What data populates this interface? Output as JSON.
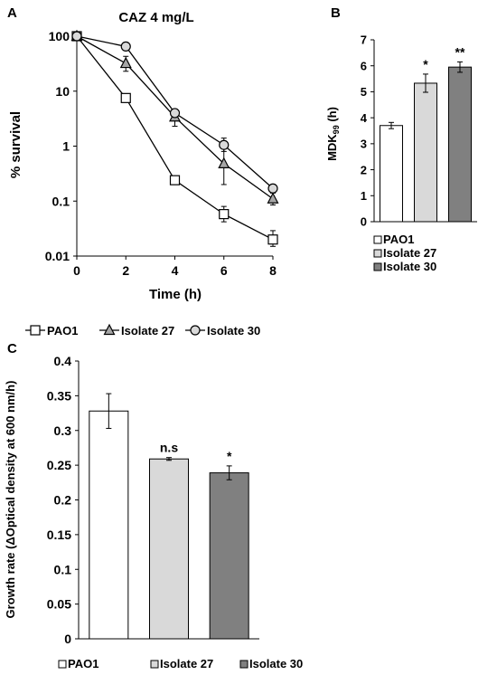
{
  "panels": {
    "A": {
      "letter": "A",
      "title": "CAZ 4 mg/L",
      "ylabel": "% survival",
      "xlabel": "Time (h)",
      "x_ticks": [
        "0",
        "2",
        "4",
        "6",
        "8"
      ],
      "y_ticks": [
        "0.01",
        "0.1",
        "1",
        "10",
        "100"
      ],
      "legend": [
        "PAO1",
        "Isolate 27",
        "Isolate 30"
      ]
    },
    "B": {
      "letter": "B",
      "ylabel_main": "MDK",
      "ylabel_sub": "99",
      "ylabel_unit": " (h)",
      "y_ticks": [
        "0",
        "1",
        "2",
        "3",
        "4",
        "5",
        "6",
        "7"
      ],
      "legend": [
        "PAO1",
        "Isolate 27",
        "Isolate 30"
      ],
      "significance": [
        "",
        "*",
        "**"
      ]
    },
    "C": {
      "letter": "C",
      "ylabel": "Growth rate (ΔOptical density at 600 nm/h)",
      "y_ticks": [
        "0",
        "0.05",
        "0.1",
        "0.15",
        "0.2",
        "0.25",
        "0.3",
        "0.35",
        "0.4"
      ],
      "legend": [
        "PAO1",
        "Isolate 27",
        "Isolate 30"
      ],
      "significance": [
        "",
        "n.s",
        "*"
      ]
    }
  },
  "colors": {
    "pao1": "#ffffff",
    "isolate27": "#d9d9d9",
    "isolate30": "#808080",
    "isolate27_marker": "#a6a6a6",
    "isolate30_marker": "#d9d9d9",
    "axis": "#000000",
    "line": "#000000"
  },
  "chart_data": [
    {
      "type": "line",
      "title": "CAZ 4 mg/L",
      "xlabel": "Time (h)",
      "ylabel": "% survival",
      "yscale": "log",
      "xlim": [
        0,
        8
      ],
      "ylim": [
        0.01,
        100
      ],
      "x": [
        0,
        2,
        4,
        6,
        8
      ],
      "series": [
        {
          "name": "PAO1",
          "marker": "square",
          "values": [
            100,
            7.5,
            0.24,
            0.058,
            0.02
          ],
          "err_lo": [
            null,
            null,
            null,
            0.042,
            0.015
          ],
          "err_hi": [
            null,
            null,
            null,
            0.08,
            0.029
          ]
        },
        {
          "name": "Isolate 27",
          "marker": "triangle",
          "values": [
            100,
            32,
            3.4,
            0.48,
            0.11
          ],
          "err_lo": [
            null,
            23,
            2.3,
            0.2,
            0.085
          ],
          "err_hi": [
            null,
            43,
            4.4,
            1.0,
            0.14
          ]
        },
        {
          "name": "Isolate 30",
          "marker": "circle",
          "values": [
            100,
            65,
            4.0,
            1.05,
            0.17
          ],
          "err_lo": [
            null,
            null,
            null,
            0.8,
            null
          ],
          "err_hi": [
            null,
            null,
            null,
            1.4,
            null
          ]
        }
      ]
    },
    {
      "type": "bar",
      "ylabel": "MDK99 (h)",
      "ylim": [
        0,
        7
      ],
      "categories": [
        "PAO1",
        "Isolate 27",
        "Isolate 30"
      ],
      "values": [
        3.7,
        5.33,
        5.95
      ],
      "errors": [
        0.12,
        0.35,
        0.2
      ],
      "significance": [
        "",
        "*",
        "**"
      ]
    },
    {
      "type": "bar",
      "ylabel": "Growth rate (ΔOptical density at 600 nm/h)",
      "ylim": [
        0,
        0.4
      ],
      "categories": [
        "PAO1",
        "Isolate 27",
        "Isolate 30"
      ],
      "values": [
        0.328,
        0.259,
        0.239
      ],
      "errors": [
        0.025,
        0.002,
        0.01
      ],
      "significance": [
        "",
        "n.s",
        "*"
      ]
    }
  ]
}
